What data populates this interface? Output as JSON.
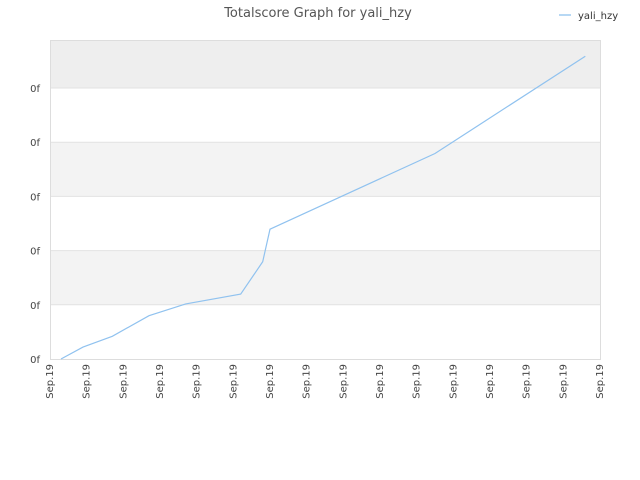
{
  "chart_data": {
    "type": "line",
    "title": "Totalscore Graph for yali_hzy",
    "xlabel": "",
    "ylabel": "",
    "legend": {
      "placement": "top-right"
    },
    "grid": true,
    "x_tick_labels": [
      "Sep.19",
      "Sep.19",
      "Sep.19",
      "Sep.19",
      "Sep.19",
      "Sep.19",
      "Sep.19",
      "Sep.19",
      "Sep.19",
      "Sep.19",
      "Sep.19",
      "Sep.19",
      "Sep.19",
      "Sep.19",
      "Sep.19",
      "Sep.19"
    ],
    "y_tick_labels": [
      "0f",
      "0f",
      "0f",
      "0f",
      "0f",
      "0f"
    ],
    "x_range": [
      0,
      15
    ],
    "y_range": [
      0,
      5.9
    ],
    "series": [
      {
        "name": "yali_hzy",
        "color": "#90c2ef",
        "x": [
          0.3,
          0.9,
          1.7,
          2.7,
          3.7,
          5.2,
          5.8,
          6.0,
          10.5,
          14.6
        ],
        "y": [
          0.0,
          0.22,
          0.42,
          0.8,
          1.02,
          1.2,
          1.8,
          2.4,
          3.8,
          5.6
        ]
      }
    ]
  }
}
